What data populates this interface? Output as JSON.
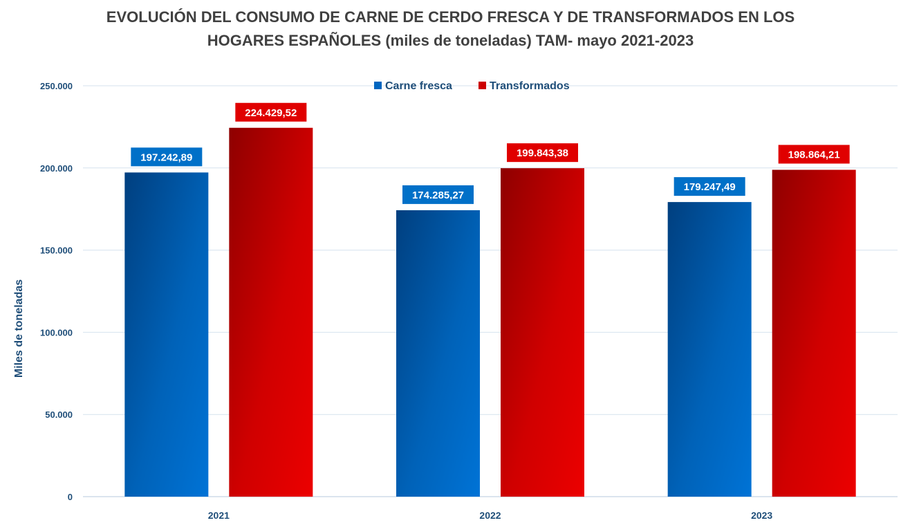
{
  "chart_data": {
    "type": "bar",
    "title_line1": "EVOLUCIÓN DEL CONSUMO DE CARNE DE CERDO FRESCA Y DE TRANSFORMADOS EN LOS",
    "title_line2": "HOGARES ESPAÑOLES (miles de toneladas) TAM- mayo 2021-2023",
    "ylabel": "Miles de toneladas",
    "xlabel": "",
    "categories": [
      "2021",
      "2022",
      "2023"
    ],
    "ylim": [
      0,
      250000
    ],
    "yticks": [
      0,
      50000,
      100000,
      150000,
      200000,
      250000
    ],
    "ytick_labels": [
      "0",
      "50.000",
      "100.000",
      "150.000",
      "200.000",
      "250.000"
    ],
    "grid": true,
    "legend_position": "top-center",
    "series": [
      {
        "name": "Carne fresca",
        "color": "#0066c0",
        "values": [
          197242.89,
          174285.27,
          179247.49
        ],
        "labels": [
          "197.242,89",
          "174.285,27",
          "179.247,49"
        ]
      },
      {
        "name": "Transformados",
        "color": "#e00000",
        "values": [
          224429.52,
          199843.38,
          198864.21
        ],
        "labels": [
          "224.429,52",
          "199.843,38",
          "198.864,21"
        ]
      }
    ]
  }
}
